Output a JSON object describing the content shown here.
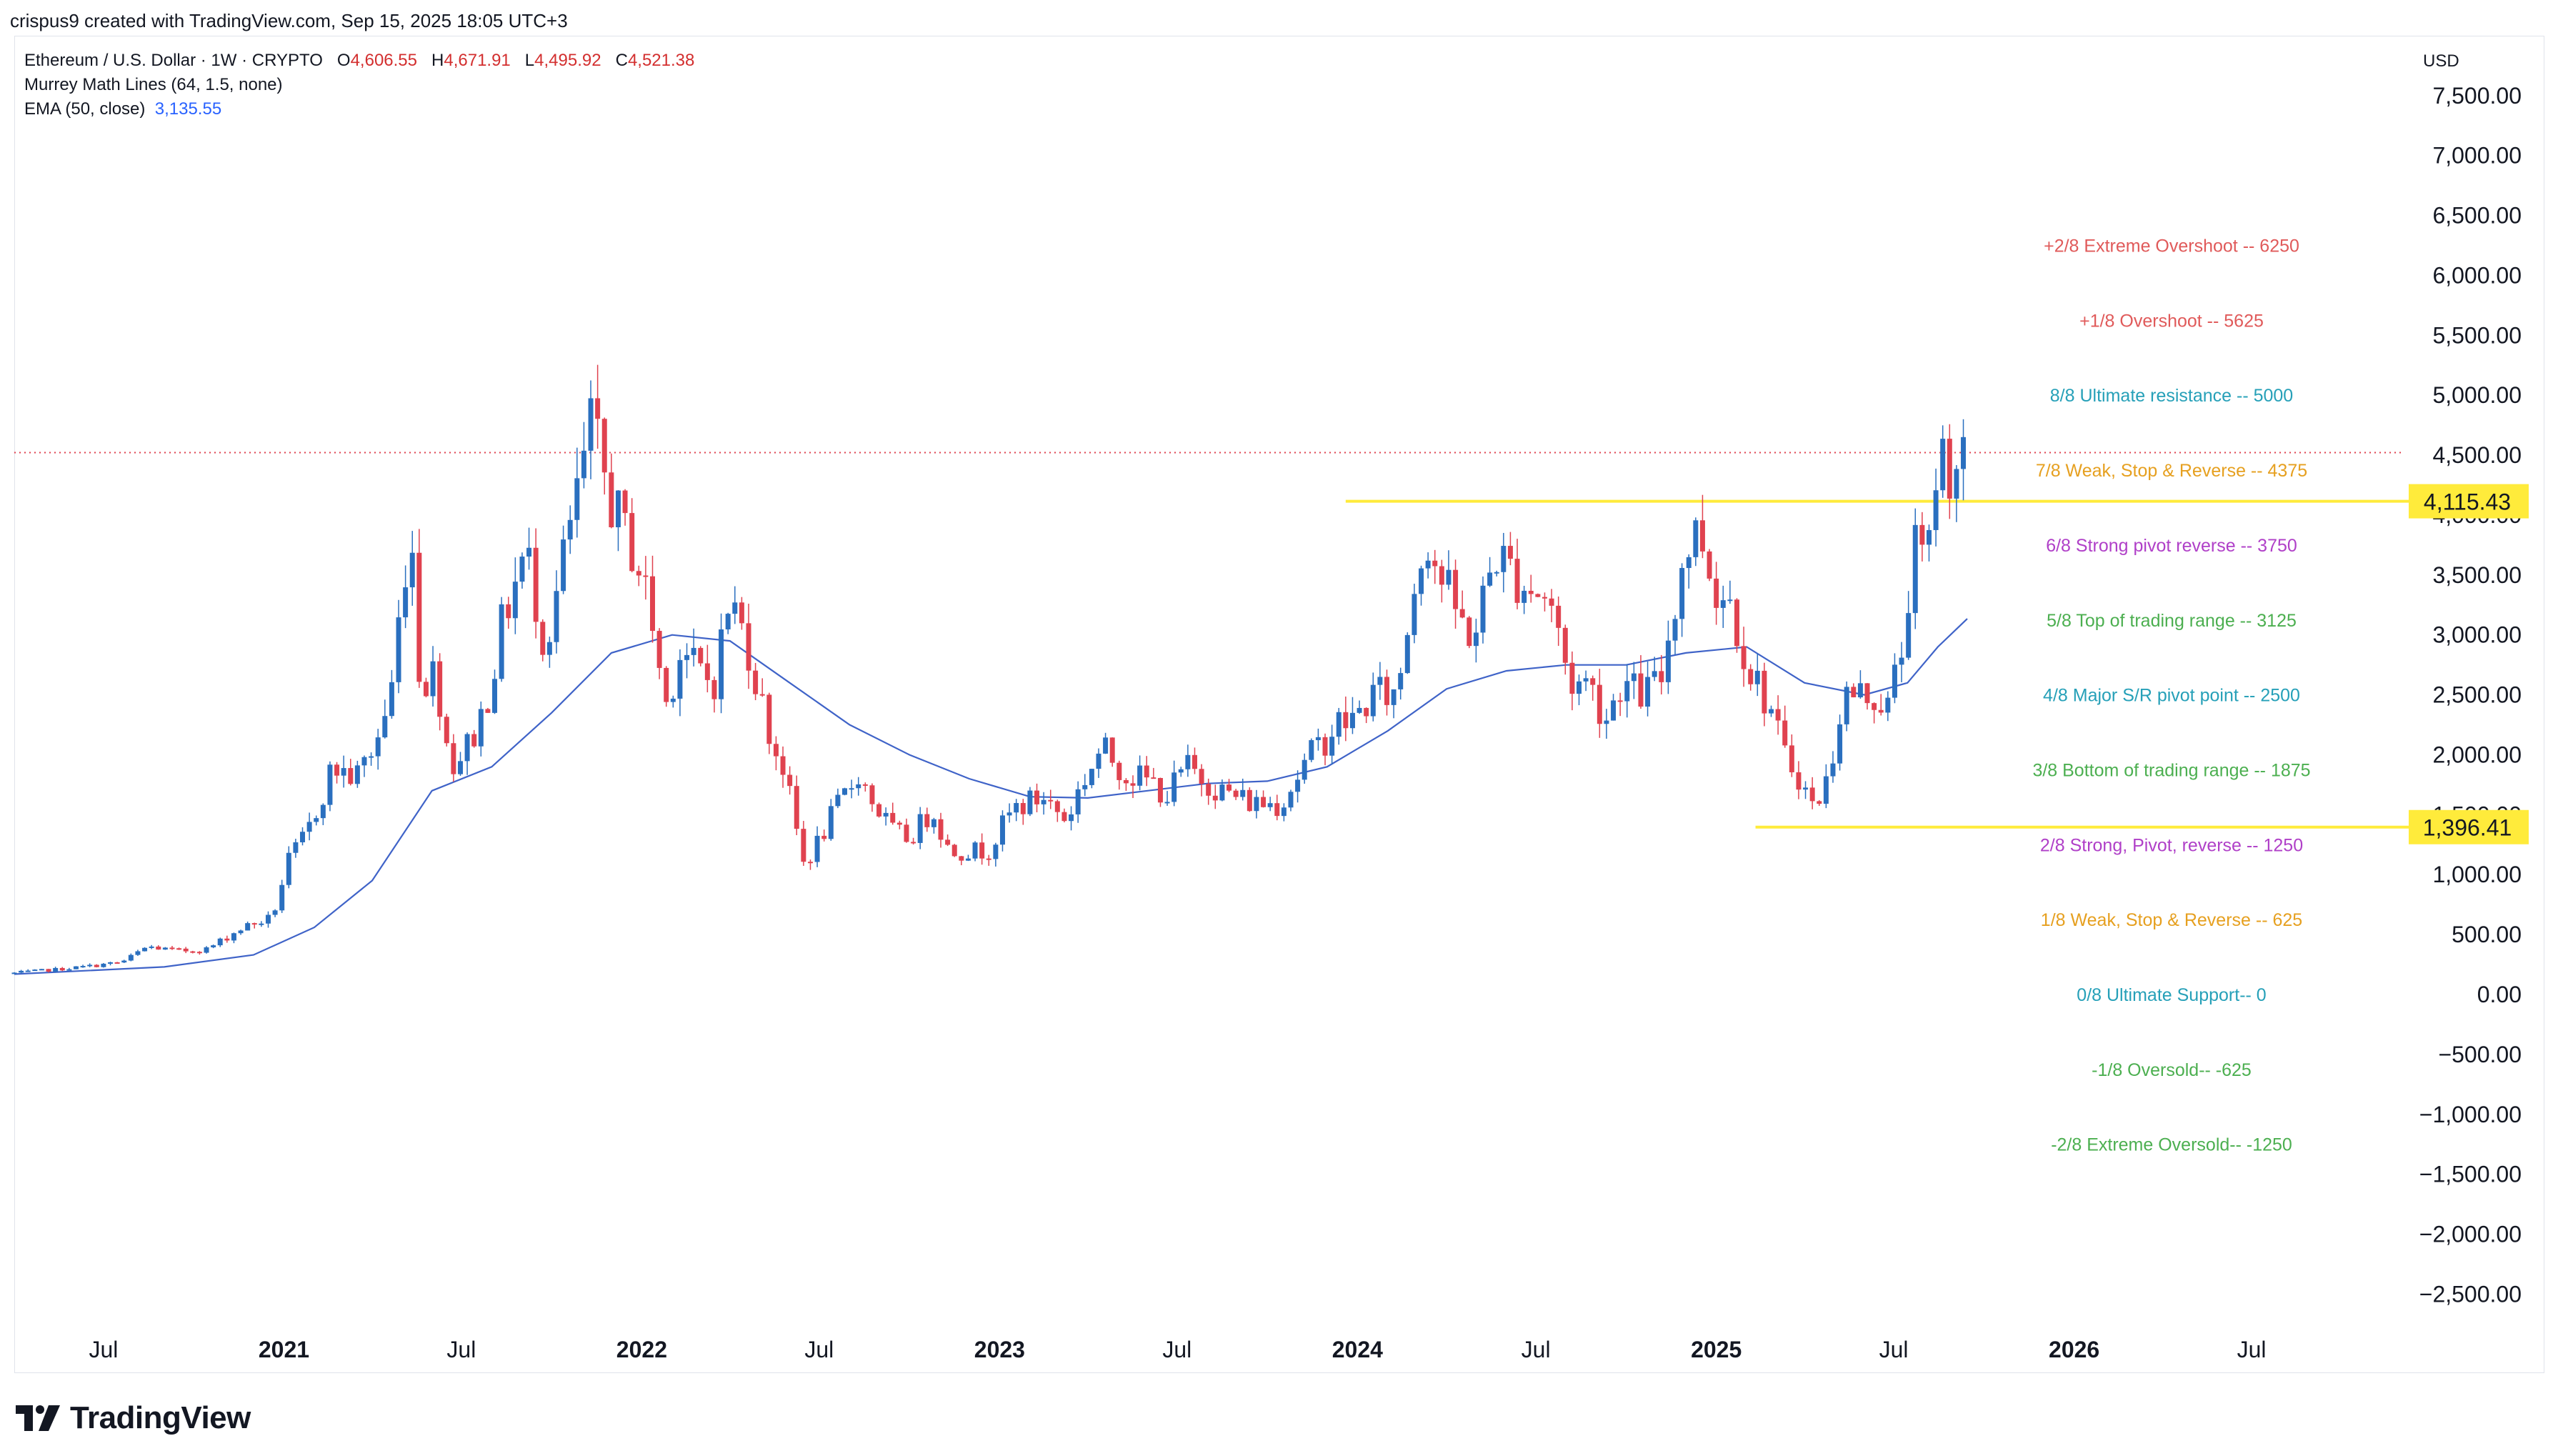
{
  "header": {
    "created_by": "crispus9 created with TradingView.com, Sep 15, 2025 18:05 UTC+3"
  },
  "legend": {
    "symbol": "Ethereum / U.S. Dollar · 1W · CRYPTO",
    "open_label": "O",
    "open": "4,606.55",
    "high_label": "H",
    "high": "4,671.91",
    "low_label": "L",
    "low": "4,495.92",
    "close_label": "C",
    "close": "4,521.38",
    "murrey": "Murrey Math Lines (64, 1.5, none)",
    "ema_label": "EMA (50, close)",
    "ema_value": "3,135.55"
  },
  "price_axis": {
    "currency": "USD",
    "ticks": [
      "7,500.00",
      "7,000.00",
      "6,500.00",
      "6,000.00",
      "5,500.00",
      "5,000.00",
      "4,500.00",
      "4,000.00",
      "3,500.00",
      "3,000.00",
      "2,500.00",
      "2,000.00",
      "1,500.00",
      "1,000.00",
      "500.00",
      "0.00",
      "−500.00",
      "−1,000.00",
      "−1,500.00",
      "−2,000.00",
      "−2,500.00"
    ]
  },
  "time_axis": {
    "labels": [
      "Jul",
      "2021",
      "Jul",
      "2022",
      "Jul",
      "2023",
      "Jul",
      "2024",
      "Jul",
      "2025",
      "Jul",
      "2026",
      "Jul"
    ],
    "bold": [
      false,
      true,
      false,
      true,
      false,
      true,
      false,
      true,
      false,
      true,
      false,
      true,
      false
    ]
  },
  "price_tags": [
    {
      "label": "4,115.43"
    },
    {
      "label": "1,396.41"
    }
  ],
  "murrey_lines": [
    {
      "text": "+2/8 Extreme Overshoot --  6250",
      "color": "#e05a5a"
    },
    {
      "text": "+1/8 Overshoot --  5625",
      "color": "#e05a5a"
    },
    {
      "text": "8/8 Ultimate resistance --  5000",
      "color": "#26a0b8"
    },
    {
      "text": "7/8 Weak, Stop & Reverse --  4375",
      "color": "#e6a020"
    },
    {
      "text": "6/8 Strong pivot reverse --  3750",
      "color": "#b040c8"
    },
    {
      "text": "5/8 Top of trading range --  3125",
      "color": "#4caf50"
    },
    {
      "text": "4/8 Major S/R pivot point --  2500",
      "color": "#26a0b8"
    },
    {
      "text": "3/8 Bottom of trading range --  1875",
      "color": "#4caf50"
    },
    {
      "text": "2/8 Strong, Pivot, reverse --  1250",
      "color": "#b040c8"
    },
    {
      "text": "1/8 Weak, Stop & Reverse --  625",
      "color": "#e6a020"
    },
    {
      "text": "0/8 Ultimate Support--  0",
      "color": "#26a0b8"
    },
    {
      "text": "-1/8 Oversold--  -625",
      "color": "#4caf50"
    },
    {
      "text": "-2/8 Extreme Oversold--  -1250",
      "color": "#4caf50"
    }
  ],
  "colors": {
    "up": "#2a6fbf",
    "down": "#e0424f",
    "ema": "#3f63c8",
    "highlight": "#ffeb3b",
    "current_price_line": "#e0424f"
  },
  "footer": {
    "brand": "TradingView"
  },
  "chart_data": {
    "type": "candlestick",
    "title": "Ethereum / U.S. Dollar · 1W · CRYPTO",
    "y_scale": "linear",
    "ylim": [
      -2750,
      7700
    ],
    "x_range": [
      "2020-04-01",
      "2026-09-01"
    ],
    "last_close": 4521.38,
    "ema_50_last": 3135.55,
    "horizontal_lines": [
      4115.43,
      1396.41
    ],
    "price_path": [
      [
        "2020-04-01",
        180
      ],
      [
        "2020-05-15",
        210
      ],
      [
        "2020-06-15",
        235
      ],
      [
        "2020-07-20",
        270
      ],
      [
        "2020-08-15",
        400
      ],
      [
        "2020-09-15",
        360
      ],
      [
        "2020-10-15",
        380
      ],
      [
        "2020-11-20",
        560
      ],
      [
        "2020-12-20",
        640
      ],
      [
        "2021-01-05",
        1100
      ],
      [
        "2021-01-25",
        1350
      ],
      [
        "2021-02-20",
        1900
      ],
      [
        "2021-03-15",
        1800
      ],
      [
        "2021-04-05",
        2100
      ],
      [
        "2021-04-20",
        2500
      ],
      [
        "2021-05-10",
        4000
      ],
      [
        "2021-05-20",
        2600
      ],
      [
        "2021-06-05",
        2700
      ],
      [
        "2021-06-20",
        1900
      ],
      [
        "2021-07-10",
        2100
      ],
      [
        "2021-07-25",
        2400
      ],
      [
        "2021-08-15",
        3200
      ],
      [
        "2021-09-05",
        3700
      ],
      [
        "2021-09-25",
        2900
      ],
      [
        "2021-10-10",
        3500
      ],
      [
        "2021-10-31",
        4300
      ],
      [
        "2021-11-10",
        4700
      ],
      [
        "2021-11-25",
        4300
      ],
      [
        "2021-12-10",
        3900
      ],
      [
        "2021-12-25",
        3700
      ],
      [
        "2022-01-10",
        3200
      ],
      [
        "2022-01-25",
        2400
      ],
      [
        "2022-02-10",
        2900
      ],
      [
        "2022-02-25",
        2700
      ],
      [
        "2022-03-15",
        2600
      ],
      [
        "2022-04-01",
        3300
      ],
      [
        "2022-04-20",
        2900
      ],
      [
        "2022-05-10",
        2200
      ],
      [
        "2022-05-25",
        1900
      ],
      [
        "2022-06-15",
        1100
      ],
      [
        "2022-06-25",
        1200
      ],
      [
        "2022-07-15",
        1500
      ],
      [
        "2022-08-10",
        1850
      ],
      [
        "2022-08-25",
        1600
      ],
      [
        "2022-09-15",
        1350
      ],
      [
        "2022-10-01",
        1300
      ],
      [
        "2022-10-25",
        1550
      ],
      [
        "2022-11-10",
        1200
      ],
      [
        "2022-11-25",
        1200
      ],
      [
        "2022-12-20",
        1200
      ],
      [
        "2023-01-15",
        1550
      ],
      [
        "2023-02-15",
        1650
      ],
      [
        "2023-03-10",
        1450
      ],
      [
        "2023-03-25",
        1750
      ],
      [
        "2023-04-15",
        2050
      ],
      [
        "2023-05-10",
        1850
      ],
      [
        "2023-06-10",
        1750
      ],
      [
        "2023-06-20",
        1650
      ],
      [
        "2023-07-10",
        1900
      ],
      [
        "2023-08-15",
        1700
      ],
      [
        "2023-09-15",
        1600
      ],
      [
        "2023-10-15",
        1600
      ],
      [
        "2023-10-30",
        1800
      ],
      [
        "2023-11-15",
        2000
      ],
      [
        "2023-12-10",
        2250
      ],
      [
        "2023-12-30",
        2300
      ],
      [
        "2024-01-15",
        2500
      ],
      [
        "2024-02-10",
        2500
      ],
      [
        "2024-02-25",
        3300
      ],
      [
        "2024-03-10",
        3900
      ],
      [
        "2024-03-25",
        3500
      ],
      [
        "2024-04-15",
        3100
      ],
      [
        "2024-04-30",
        3000
      ],
      [
        "2024-05-20",
        3700
      ],
      [
        "2024-06-10",
        3500
      ],
      [
        "2024-06-25",
        3400
      ],
      [
        "2024-07-15",
        3300
      ],
      [
        "2024-08-05",
        2600
      ],
      [
        "2024-08-25",
        2600
      ],
      [
        "2024-09-10",
        2300
      ],
      [
        "2024-09-25",
        2600
      ],
      [
        "2024-10-15",
        2500
      ],
      [
        "2024-11-05",
        2600
      ],
      [
        "2024-11-15",
        3100
      ],
      [
        "2024-11-30",
        3700
      ],
      [
        "2024-12-15",
        3900
      ],
      [
        "2024-12-30",
        3400
      ],
      [
        "2025-01-15",
        3300
      ],
      [
        "2025-02-05",
        2700
      ],
      [
        "2025-02-25",
        2400
      ],
      [
        "2025-03-10",
        2000
      ],
      [
        "2025-03-25",
        1850
      ],
      [
        "2025-04-10",
        1550
      ],
      [
        "2025-04-25",
        1800
      ],
      [
        "2025-05-10",
        2500
      ],
      [
        "2025-05-25",
        2500
      ],
      [
        "2025-06-10",
        2500
      ],
      [
        "2025-06-25",
        2400
      ],
      [
        "2025-07-10",
        2900
      ],
      [
        "2025-07-20",
        3700
      ],
      [
        "2025-08-05",
        3600
      ],
      [
        "2025-08-15",
        4600
      ],
      [
        "2025-08-25",
        4400
      ],
      [
        "2025-09-14",
        4521
      ]
    ],
    "ema_path": [
      [
        "2020-04-01",
        170
      ],
      [
        "2020-09-01",
        230
      ],
      [
        "2020-12-01",
        330
      ],
      [
        "2021-02-01",
        560
      ],
      [
        "2021-04-01",
        950
      ],
      [
        "2021-06-01",
        1700
      ],
      [
        "2021-08-01",
        1900
      ],
      [
        "2021-10-01",
        2350
      ],
      [
        "2021-12-01",
        2850
      ],
      [
        "2022-02-01",
        3000
      ],
      [
        "2022-04-01",
        2950
      ],
      [
        "2022-06-01",
        2600
      ],
      [
        "2022-08-01",
        2250
      ],
      [
        "2022-10-01",
        2000
      ],
      [
        "2022-12-01",
        1800
      ],
      [
        "2023-02-01",
        1650
      ],
      [
        "2023-04-01",
        1640
      ],
      [
        "2023-06-01",
        1700
      ],
      [
        "2023-08-01",
        1760
      ],
      [
        "2023-10-01",
        1780
      ],
      [
        "2023-12-01",
        1900
      ],
      [
        "2024-02-01",
        2200
      ],
      [
        "2024-04-01",
        2550
      ],
      [
        "2024-06-01",
        2700
      ],
      [
        "2024-08-01",
        2750
      ],
      [
        "2024-10-01",
        2750
      ],
      [
        "2024-12-01",
        2850
      ],
      [
        "2025-02-01",
        2900
      ],
      [
        "2025-04-01",
        2600
      ],
      [
        "2025-06-01",
        2500
      ],
      [
        "2025-07-15",
        2600
      ],
      [
        "2025-08-15",
        2900
      ],
      [
        "2025-09-14",
        3135
      ]
    ]
  }
}
